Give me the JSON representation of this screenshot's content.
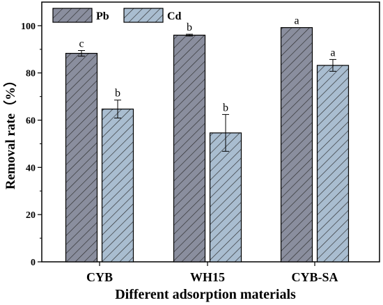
{
  "chart_data": {
    "type": "bar",
    "categories": [
      "CYB",
      "WH15",
      "CYB-SA"
    ],
    "series": [
      {
        "name": "Pb",
        "values": [
          88.3,
          96.0,
          99.2
        ],
        "errors": [
          1.2,
          0.4,
          0.0
        ],
        "letters": [
          "c",
          "b",
          "a"
        ],
        "color": "#8a8e9e"
      },
      {
        "name": "Cd",
        "values": [
          64.7,
          54.6,
          83.2
        ],
        "errors": [
          3.8,
          7.8,
          2.5
        ],
        "letters": [
          "b",
          "b",
          "a"
        ],
        "color": "#a9bdd0"
      }
    ],
    "xlabel": "Different adsorption materials",
    "ylabel": "Removal rate（%）",
    "ylim": [
      0,
      110
    ],
    "yticks": [
      "0",
      "20",
      "40",
      "60",
      "80",
      "100"
    ],
    "legend_position": "top-left",
    "grid": false
  }
}
